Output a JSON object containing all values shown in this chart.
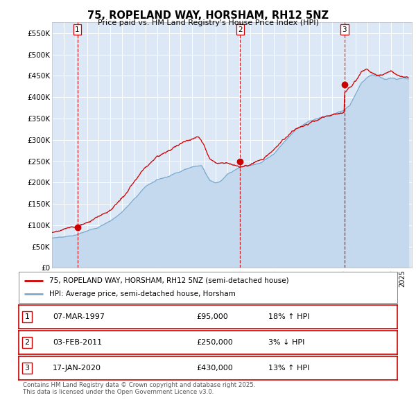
{
  "title": "75, ROPELAND WAY, HORSHAM, RH12 5NZ",
  "subtitle": "Price paid vs. HM Land Registry's House Price Index (HPI)",
  "plot_bg_color": "#dce8f5",
  "ylim": [
    0,
    575000
  ],
  "yticks": [
    0,
    50000,
    100000,
    150000,
    200000,
    250000,
    300000,
    350000,
    400000,
    450000,
    500000,
    550000
  ],
  "ytick_labels": [
    "£0",
    "£50K",
    "£100K",
    "£150K",
    "£200K",
    "£250K",
    "£300K",
    "£350K",
    "£400K",
    "£450K",
    "£500K",
    "£550K"
  ],
  "xlim_start": 1995.0,
  "xlim_end": 2025.8,
  "sale_dates": [
    1997.17,
    2011.09,
    2020.04
  ],
  "sale_prices": [
    95000,
    250000,
    430000
  ],
  "sale_labels": [
    "1",
    "2",
    "3"
  ],
  "red_line_color": "#cc0000",
  "blue_line_color": "#7aaad0",
  "blue_fill_color": "#c5d9ee",
  "legend_entries": [
    "75, ROPELAND WAY, HORSHAM, RH12 5NZ (semi-detached house)",
    "HPI: Average price, semi-detached house, Horsham"
  ],
  "table_rows": [
    [
      "1",
      "07-MAR-1997",
      "£95,000",
      "18% ↑ HPI"
    ],
    [
      "2",
      "03-FEB-2011",
      "£250,000",
      "3% ↓ HPI"
    ],
    [
      "3",
      "17-JAN-2020",
      "£430,000",
      "13% ↑ HPI"
    ]
  ],
  "footer": "Contains HM Land Registry data © Crown copyright and database right 2025.\nThis data is licensed under the Open Government Licence v3.0."
}
